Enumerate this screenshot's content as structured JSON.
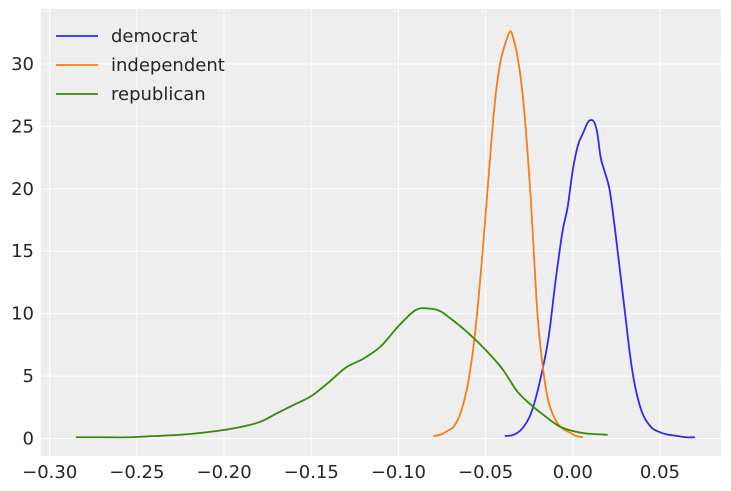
{
  "chart_data": {
    "type": "line",
    "title": "",
    "xlabel": "",
    "ylabel": "",
    "xlim": [
      -0.305,
      0.085
    ],
    "ylim": [
      -1.4,
      34.4
    ],
    "grid": true,
    "background_color": "#eeeeee",
    "legend": {
      "placement": "top-left"
    },
    "x_ticks": [
      -0.3,
      -0.25,
      -0.2,
      -0.15,
      -0.1,
      -0.05,
      0.0,
      0.05
    ],
    "x_tick_labels": [
      "−0.30",
      "−0.25",
      "−0.20",
      "−0.15",
      "−0.10",
      "−0.05",
      "0.00",
      "0.05"
    ],
    "y_ticks": [
      0,
      5,
      10,
      15,
      20,
      25,
      30
    ],
    "y_tick_labels": [
      "0",
      "5",
      "10",
      "15",
      "20",
      "25",
      "30"
    ],
    "series": [
      {
        "name": "democrat",
        "color": "#2a2eec",
        "x": [
          -0.039,
          -0.034,
          -0.029,
          -0.024,
          -0.019,
          -0.014,
          -0.01,
          -0.006,
          -0.003,
          0.0,
          0.003,
          0.006,
          0.009,
          0.012,
          0.014,
          0.016,
          0.018,
          0.021,
          0.024,
          0.027,
          0.03,
          0.033,
          0.036,
          0.04,
          0.045,
          0.05,
          0.055,
          0.06,
          0.065,
          0.07
        ],
        "y": [
          0.2,
          0.3,
          0.8,
          2.0,
          4.5,
          8.0,
          12.5,
          16.5,
          18.5,
          21.5,
          23.5,
          24.5,
          25.4,
          25.4,
          24.5,
          22.5,
          21.5,
          20.0,
          17.0,
          13.5,
          10.0,
          6.5,
          4.0,
          2.0,
          0.9,
          0.5,
          0.3,
          0.2,
          0.1,
          0.1
        ]
      },
      {
        "name": "independent",
        "color": "#fa7c17",
        "x": [
          -0.08,
          -0.076,
          -0.072,
          -0.068,
          -0.064,
          -0.06,
          -0.056,
          -0.052,
          -0.048,
          -0.045,
          -0.042,
          -0.039,
          -0.036,
          -0.034,
          -0.032,
          -0.03,
          -0.028,
          -0.026,
          -0.024,
          -0.022,
          -0.02,
          -0.017,
          -0.014,
          -0.01,
          -0.006,
          -0.002,
          0.002,
          0.006
        ],
        "y": [
          0.2,
          0.3,
          0.6,
          1.0,
          2.2,
          4.5,
          8.5,
          14.5,
          21.5,
          26.5,
          29.8,
          31.5,
          32.6,
          32.0,
          30.8,
          29.0,
          26.5,
          23.0,
          19.0,
          14.0,
          9.5,
          5.5,
          3.0,
          1.5,
          0.8,
          0.5,
          0.2,
          0.1
        ]
      },
      {
        "name": "republican",
        "color": "#328c06",
        "x": [
          -0.285,
          -0.27,
          -0.255,
          -0.24,
          -0.225,
          -0.21,
          -0.195,
          -0.18,
          -0.17,
          -0.16,
          -0.15,
          -0.14,
          -0.13,
          -0.12,
          -0.11,
          -0.1,
          -0.09,
          -0.082,
          -0.076,
          -0.07,
          -0.062,
          -0.055,
          -0.048,
          -0.04,
          -0.032,
          -0.024,
          -0.016,
          -0.008,
          0.0,
          0.008,
          0.02
        ],
        "y": [
          0.1,
          0.1,
          0.1,
          0.2,
          0.3,
          0.5,
          0.8,
          1.3,
          2.0,
          2.7,
          3.4,
          4.5,
          5.7,
          6.4,
          7.4,
          9.0,
          10.3,
          10.4,
          10.2,
          9.6,
          8.7,
          7.8,
          6.8,
          5.5,
          3.8,
          2.7,
          1.8,
          1.0,
          0.6,
          0.4,
          0.3
        ]
      }
    ]
  }
}
